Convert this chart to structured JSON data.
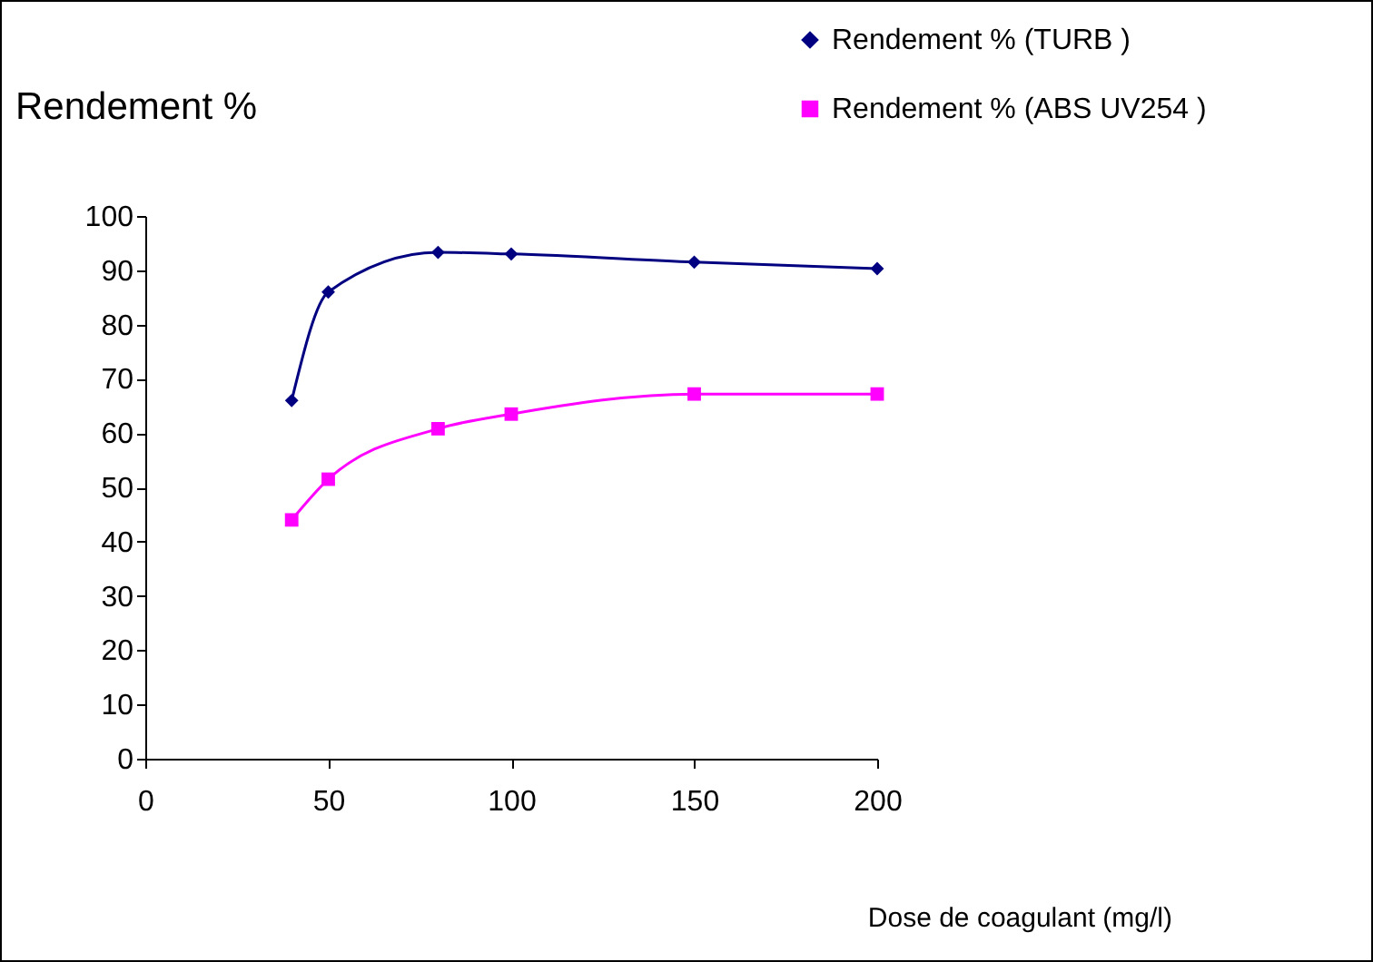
{
  "chart_data": {
    "type": "line",
    "ylabel": "Rendement %",
    "xlabel": "Dose de coagulant (mg/l)",
    "x": [
      40,
      50,
      80,
      100,
      150,
      200
    ],
    "series": [
      {
        "name": "Rendement % (TURB )",
        "color": "#000080",
        "marker": "diamond",
        "values": [
          66,
          86,
          93.3,
          93,
          91.5,
          90.3
        ]
      },
      {
        "name": "Rendement % (ABS UV254 )",
        "color": "#ff00ff",
        "marker": "square",
        "values": [
          44,
          51.5,
          60.8,
          63.5,
          67.2,
          67.2
        ]
      }
    ],
    "xlim": [
      0,
      200
    ],
    "xticks": [
      0,
      50,
      100,
      150,
      200
    ],
    "ylim": [
      0,
      100
    ],
    "yticks": [
      0,
      10,
      20,
      30,
      40,
      50,
      60,
      70,
      80,
      90,
      100
    ],
    "grid": false,
    "legend": "top right",
    "line_style": "solid"
  }
}
